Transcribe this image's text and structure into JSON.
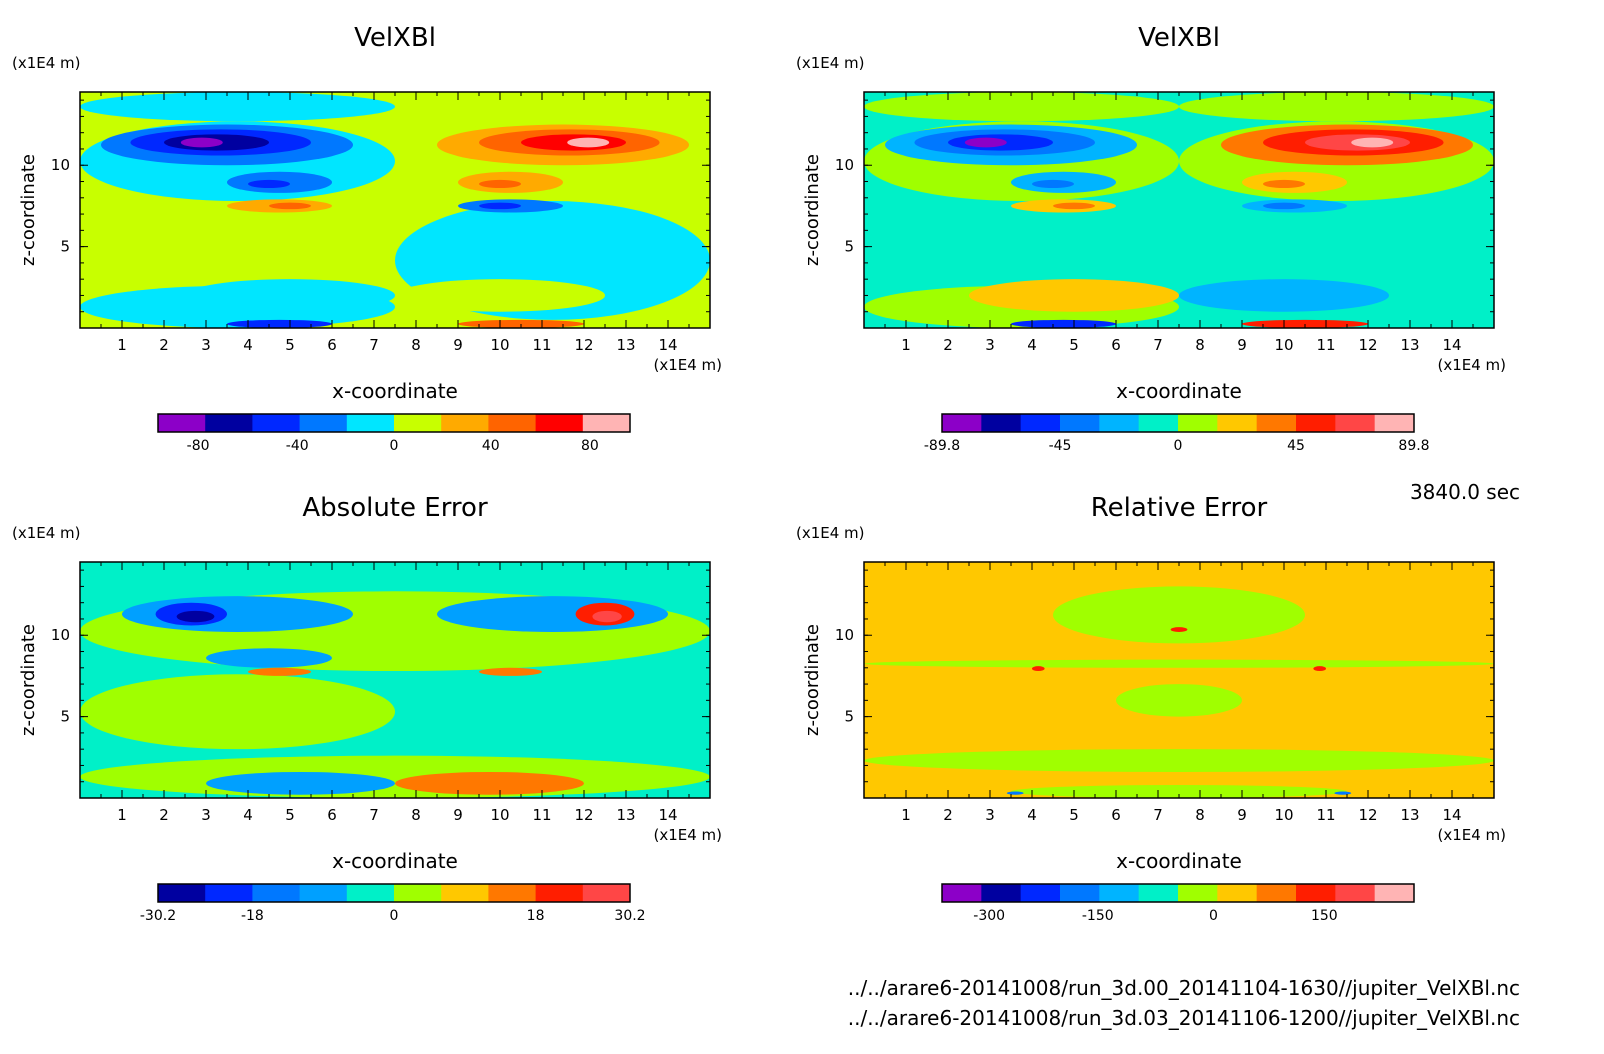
{
  "timestamp": "3840.0 sec",
  "files": [
    "../../arare6-20141008/run_3d.00_20141104-1630//jupiter_VelXBl.nc",
    "../../arare6-20141008/run_3d.03_20141106-1200//jupiter_VelXBl.nc"
  ],
  "chart_data": [
    {
      "type": "heatmap",
      "title": "VelXBl",
      "xlabel": "x-coordinate",
      "ylabel": "z-coordinate",
      "xunit": "(x1E4 m)",
      "yunit": "(x1E4 m)",
      "x_ticks": [
        "1",
        "2",
        "3",
        "4",
        "5",
        "6",
        "7",
        "8",
        "9",
        "10",
        "11",
        "12",
        "13",
        "14"
      ],
      "y_ticks": [
        "5",
        "10"
      ],
      "xlim": [
        0,
        15
      ],
      "ylim": [
        0,
        14.5
      ],
      "colorbar": {
        "colors": [
          "#8c00c8",
          "#0000a0",
          "#0028ff",
          "#0078ff",
          "#00e6ff",
          "#c8ff00",
          "#ffaa00",
          "#ff6400",
          "#ff0000",
          "#ffb4b4"
        ],
        "ticks": [
          {
            "label": "-80",
            "pos": 0.085
          },
          {
            "label": "-40",
            "pos": 0.295
          },
          {
            "label": "0",
            "pos": 0.5
          },
          {
            "label": "40",
            "pos": 0.705
          },
          {
            "label": "80",
            "pos": 0.915
          }
        ]
      },
      "background": "#c8ff00",
      "features": [
        {
          "x": [
            0,
            7.5
          ],
          "y": [
            0,
            2.6
          ],
          "level": 4
        },
        {
          "x": [
            0,
            7.5
          ],
          "y": [
            12.7,
            14.5
          ],
          "level": 4
        },
        {
          "x": [
            0,
            7.5
          ],
          "y": [
            7.8,
            12.7
          ],
          "level": 4
        },
        {
          "x": [
            7.5,
            15
          ],
          "y": [
            0.5,
            7.8
          ],
          "level": 4
        },
        {
          "x": [
            7.5,
            15
          ],
          "y": [
            12.7,
            14.5
          ],
          "level": 5
        },
        {
          "x": [
            7.5,
            15
          ],
          "y": [
            7.8,
            12.7
          ],
          "level": 5
        },
        {
          "x": [
            0.5,
            6.5
          ],
          "y": [
            10.0,
            12.5
          ],
          "level": 3
        },
        {
          "x": [
            1.2,
            5.5
          ],
          "y": [
            10.6,
            12.2
          ],
          "level": 2
        },
        {
          "x": [
            2.0,
            4.5
          ],
          "y": [
            10.9,
            11.9
          ],
          "level": 1
        },
        {
          "x": [
            2.4,
            3.4
          ],
          "y": [
            11.1,
            11.7
          ],
          "level": 0
        },
        {
          "x": [
            3.5,
            6.0
          ],
          "y": [
            8.3,
            9.6
          ],
          "level": 3
        },
        {
          "x": [
            4.0,
            5.0
          ],
          "y": [
            8.6,
            9.1
          ],
          "level": 2
        },
        {
          "x": [
            3.5,
            6.0
          ],
          "y": [
            7.1,
            7.9
          ],
          "level": 6
        },
        {
          "x": [
            4.5,
            5.5
          ],
          "y": [
            7.3,
            7.7
          ],
          "level": 7
        },
        {
          "x": [
            8.5,
            14.5
          ],
          "y": [
            10.0,
            12.5
          ],
          "level": 6
        },
        {
          "x": [
            9.5,
            13.8
          ],
          "y": [
            10.6,
            12.2
          ],
          "level": 7
        },
        {
          "x": [
            10.5,
            13.0
          ],
          "y": [
            10.9,
            11.9
          ],
          "level": 8
        },
        {
          "x": [
            11.6,
            12.6
          ],
          "y": [
            11.1,
            11.7
          ],
          "level": 9
        },
        {
          "x": [
            9.0,
            11.5
          ],
          "y": [
            8.3,
            9.6
          ],
          "level": 6
        },
        {
          "x": [
            9.5,
            10.5
          ],
          "y": [
            8.6,
            9.1
          ],
          "level": 7
        },
        {
          "x": [
            9.0,
            11.5
          ],
          "y": [
            7.1,
            7.9
          ],
          "level": 3
        },
        {
          "x": [
            9.5,
            10.5
          ],
          "y": [
            7.3,
            7.7
          ],
          "level": 2
        },
        {
          "x": [
            3.5,
            6.0
          ],
          "y": [
            0,
            0.5
          ],
          "level": 2
        },
        {
          "x": [
            9.0,
            12.0
          ],
          "y": [
            0,
            0.5
          ],
          "level": 7
        },
        {
          "x": [
            2.5,
            7.5
          ],
          "y": [
            1.0,
            3.0
          ],
          "level": 4
        },
        {
          "x": [
            7.5,
            12.5
          ],
          "y": [
            1.0,
            3.0
          ],
          "level": 5
        }
      ]
    },
    {
      "type": "heatmap",
      "title": "VelXBl",
      "xlabel": "x-coordinate",
      "ylabel": "z-coordinate",
      "xunit": "(x1E4 m)",
      "yunit": "(x1E4 m)",
      "x_ticks": [
        "1",
        "2",
        "3",
        "4",
        "5",
        "6",
        "7",
        "8",
        "9",
        "10",
        "11",
        "12",
        "13",
        "14"
      ],
      "y_ticks": [
        "5",
        "10"
      ],
      "xlim": [
        0,
        15
      ],
      "ylim": [
        0,
        14.5
      ],
      "colorbar": {
        "colors": [
          "#8c00c8",
          "#0000a0",
          "#0028ff",
          "#0078ff",
          "#00b4ff",
          "#00f0c8",
          "#a0ff00",
          "#ffc800",
          "#ff7800",
          "#ff1e00",
          "#ff4646",
          "#ffb4b4"
        ],
        "ticks": [
          {
            "label": "-89.8",
            "pos": 0.0
          },
          {
            "label": "-45",
            "pos": 0.25
          },
          {
            "label": "0",
            "pos": 0.5
          },
          {
            "label": "45",
            "pos": 0.75
          },
          {
            "label": "89.8",
            "pos": 1.0
          }
        ]
      },
      "background": "#00f0c8",
      "features": [
        {
          "x": [
            0,
            7.5
          ],
          "y": [
            0,
            2.6
          ],
          "level": 6
        },
        {
          "x": [
            0,
            7.5
          ],
          "y": [
            12.7,
            14.5
          ],
          "level": 6
        },
        {
          "x": [
            0,
            7.5
          ],
          "y": [
            7.8,
            12.7
          ],
          "level": 6
        },
        {
          "x": [
            7.5,
            15
          ],
          "y": [
            12.7,
            14.5
          ],
          "level": 6
        },
        {
          "x": [
            7.5,
            15
          ],
          "y": [
            7.8,
            12.7
          ],
          "level": 6
        },
        {
          "x": [
            0.5,
            6.5
          ],
          "y": [
            10.0,
            12.5
          ],
          "level": 4
        },
        {
          "x": [
            1.2,
            5.5
          ],
          "y": [
            10.6,
            12.2
          ],
          "level": 3
        },
        {
          "x": [
            2.0,
            4.5
          ],
          "y": [
            10.9,
            11.9
          ],
          "level": 2
        },
        {
          "x": [
            2.4,
            3.4
          ],
          "y": [
            11.1,
            11.7
          ],
          "level": 0
        },
        {
          "x": [
            3.5,
            6.0
          ],
          "y": [
            8.3,
            9.6
          ],
          "level": 4
        },
        {
          "x": [
            4.0,
            5.0
          ],
          "y": [
            8.6,
            9.1
          ],
          "level": 3
        },
        {
          "x": [
            3.5,
            6.0
          ],
          "y": [
            7.1,
            7.9
          ],
          "level": 7
        },
        {
          "x": [
            4.5,
            5.5
          ],
          "y": [
            7.3,
            7.7
          ],
          "level": 8
        },
        {
          "x": [
            8.5,
            14.5
          ],
          "y": [
            10.0,
            12.5
          ],
          "level": 8
        },
        {
          "x": [
            9.5,
            13.8
          ],
          "y": [
            10.6,
            12.2
          ],
          "level": 9
        },
        {
          "x": [
            10.5,
            13.0
          ],
          "y": [
            10.9,
            11.9
          ],
          "level": 10
        },
        {
          "x": [
            11.6,
            12.6
          ],
          "y": [
            11.1,
            11.7
          ],
          "level": 11
        },
        {
          "x": [
            9.0,
            11.5
          ],
          "y": [
            8.3,
            9.6
          ],
          "level": 7
        },
        {
          "x": [
            9.5,
            10.5
          ],
          "y": [
            8.6,
            9.1
          ],
          "level": 8
        },
        {
          "x": [
            9.0,
            11.5
          ],
          "y": [
            7.1,
            7.9
          ],
          "level": 4
        },
        {
          "x": [
            9.5,
            10.5
          ],
          "y": [
            7.3,
            7.7
          ],
          "level": 3
        },
        {
          "x": [
            3.5,
            6.0
          ],
          "y": [
            0,
            0.5
          ],
          "level": 2
        },
        {
          "x": [
            9.0,
            12.0
          ],
          "y": [
            0,
            0.5
          ],
          "level": 9
        },
        {
          "x": [
            2.5,
            7.5
          ],
          "y": [
            1.0,
            3.0
          ],
          "level": 7
        },
        {
          "x": [
            7.5,
            12.5
          ],
          "y": [
            1.0,
            3.0
          ],
          "level": 4
        }
      ]
    },
    {
      "type": "heatmap",
      "title": "Absolute Error",
      "xlabel": "x-coordinate",
      "ylabel": "z-coordinate",
      "xunit": "(x1E4 m)",
      "yunit": "(x1E4 m)",
      "x_ticks": [
        "1",
        "2",
        "3",
        "4",
        "5",
        "6",
        "7",
        "8",
        "9",
        "10",
        "11",
        "12",
        "13",
        "14"
      ],
      "y_ticks": [
        "5",
        "10"
      ],
      "xlim": [
        0,
        15
      ],
      "ylim": [
        0,
        14.5
      ],
      "colorbar": {
        "colors": [
          "#0000a0",
          "#0028ff",
          "#0078ff",
          "#00a0ff",
          "#00f0c8",
          "#a0ff00",
          "#ffc800",
          "#ff7800",
          "#ff1e00",
          "#ff4646"
        ],
        "ticks": [
          {
            "label": "-30.2",
            "pos": 0.0
          },
          {
            "label": "-18",
            "pos": 0.2
          },
          {
            "label": "0",
            "pos": 0.5
          },
          {
            "label": "18",
            "pos": 0.8
          },
          {
            "label": "30.2",
            "pos": 1.0
          }
        ]
      },
      "background": "#00f0c8",
      "features": [
        {
          "x": [
            0,
            15
          ],
          "y": [
            7.8,
            12.7
          ],
          "level": 5
        },
        {
          "x": [
            0,
            15
          ],
          "y": [
            0,
            2.6
          ],
          "level": 5
        },
        {
          "x": [
            0,
            7.5
          ],
          "y": [
            3.0,
            7.6
          ],
          "level": 5
        },
        {
          "x": [
            1.0,
            6.5
          ],
          "y": [
            10.2,
            12.4
          ],
          "level": 3
        },
        {
          "x": [
            1.8,
            3.5
          ],
          "y": [
            10.6,
            12.0
          ],
          "level": 1
        },
        {
          "x": [
            2.3,
            3.2
          ],
          "y": [
            10.8,
            11.5
          ],
          "level": 0
        },
        {
          "x": [
            3.0,
            6.0
          ],
          "y": [
            8.0,
            9.2
          ],
          "level": 3
        },
        {
          "x": [
            4.0,
            5.5
          ],
          "y": [
            7.5,
            8.0
          ],
          "level": 7
        },
        {
          "x": [
            8.5,
            14.0
          ],
          "y": [
            10.2,
            12.4
          ],
          "level": 3
        },
        {
          "x": [
            11.8,
            13.2
          ],
          "y": [
            10.6,
            12.0
          ],
          "level": 8
        },
        {
          "x": [
            12.2,
            12.9
          ],
          "y": [
            10.8,
            11.5
          ],
          "level": 9
        },
        {
          "x": [
            9.5,
            11.0
          ],
          "y": [
            7.5,
            8.0
          ],
          "level": 7
        },
        {
          "x": [
            3.0,
            7.5
          ],
          "y": [
            0.2,
            1.6
          ],
          "level": 3
        },
        {
          "x": [
            7.5,
            12.0
          ],
          "y": [
            0.2,
            1.6
          ],
          "level": 7
        }
      ]
    },
    {
      "type": "heatmap",
      "title": "Relative Error",
      "xlabel": "x-coordinate",
      "ylabel": "z-coordinate",
      "xunit": "(x1E4 m)",
      "yunit": "(x1E4 m)",
      "x_ticks": [
        "1",
        "2",
        "3",
        "4",
        "5",
        "6",
        "7",
        "8",
        "9",
        "10",
        "11",
        "12",
        "13",
        "14"
      ],
      "y_ticks": [
        "5",
        "10"
      ],
      "xlim": [
        0,
        15
      ],
      "ylim": [
        0,
        14.5
      ],
      "colorbar": {
        "colors": [
          "#8c00c8",
          "#0000a0",
          "#0028ff",
          "#0078ff",
          "#00b4ff",
          "#00f0c8",
          "#a0ff00",
          "#ffc800",
          "#ff7800",
          "#ff1e00",
          "#ff4646",
          "#ffb4b4"
        ],
        "ticks": [
          {
            "label": "-300",
            "pos": 0.1
          },
          {
            "label": "-150",
            "pos": 0.33
          },
          {
            "label": "0",
            "pos": 0.575
          },
          {
            "label": "150",
            "pos": 0.81
          }
        ]
      },
      "background": "#ffc800",
      "features": [
        {
          "x": [
            0,
            15
          ],
          "y": [
            8.0,
            8.5
          ],
          "level": 6
        },
        {
          "x": [
            0,
            15
          ],
          "y": [
            1.6,
            3.0
          ],
          "level": 6
        },
        {
          "x": [
            4.5,
            10.5
          ],
          "y": [
            9.5,
            13.0
          ],
          "level": 6
        },
        {
          "x": [
            6.0,
            9.0
          ],
          "y": [
            5.0,
            7.0
          ],
          "level": 6
        },
        {
          "x": [
            3.5,
            11.5
          ],
          "y": [
            0,
            0.8
          ],
          "level": 6
        },
        {
          "x": [
            7.3,
            7.7
          ],
          "y": [
            10.2,
            10.5
          ],
          "level": 9
        },
        {
          "x": [
            4.0,
            4.3
          ],
          "y": [
            7.8,
            8.1
          ],
          "level": 9
        },
        {
          "x": [
            10.7,
            11.0
          ],
          "y": [
            7.8,
            8.1
          ],
          "level": 9
        },
        {
          "x": [
            3.4,
            3.8
          ],
          "y": [
            0.2,
            0.4
          ],
          "level": 3
        },
        {
          "x": [
            11.2,
            11.6
          ],
          "y": [
            0.2,
            0.4
          ],
          "level": 3
        }
      ]
    }
  ]
}
